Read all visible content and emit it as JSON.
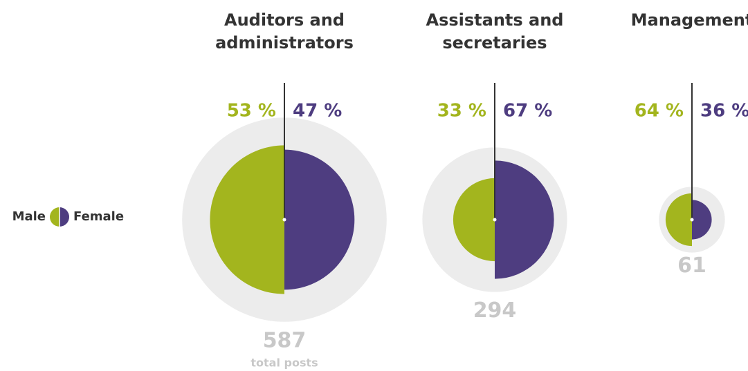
{
  "chart_data": {
    "type": "split-circle",
    "categories": [
      [
        "Auditors and",
        "administrators"
      ],
      [
        "Assistants and",
        "secretaries"
      ],
      [
        "Management"
      ]
    ],
    "series": [
      {
        "name": "Male",
        "color": "#a3b51e",
        "values": [
          53,
          33,
          64
        ],
        "value_labels": [
          "53 %",
          "33 %",
          "64 %"
        ]
      },
      {
        "name": "Female",
        "color": "#4e3d80",
        "values": [
          47,
          67,
          36
        ],
        "value_labels": [
          "47 %",
          "67 %",
          "36 %"
        ]
      }
    ],
    "totals": {
      "color": "#ececec",
      "values": [
        587,
        294,
        61
      ]
    },
    "total_label": "total posts"
  }
}
